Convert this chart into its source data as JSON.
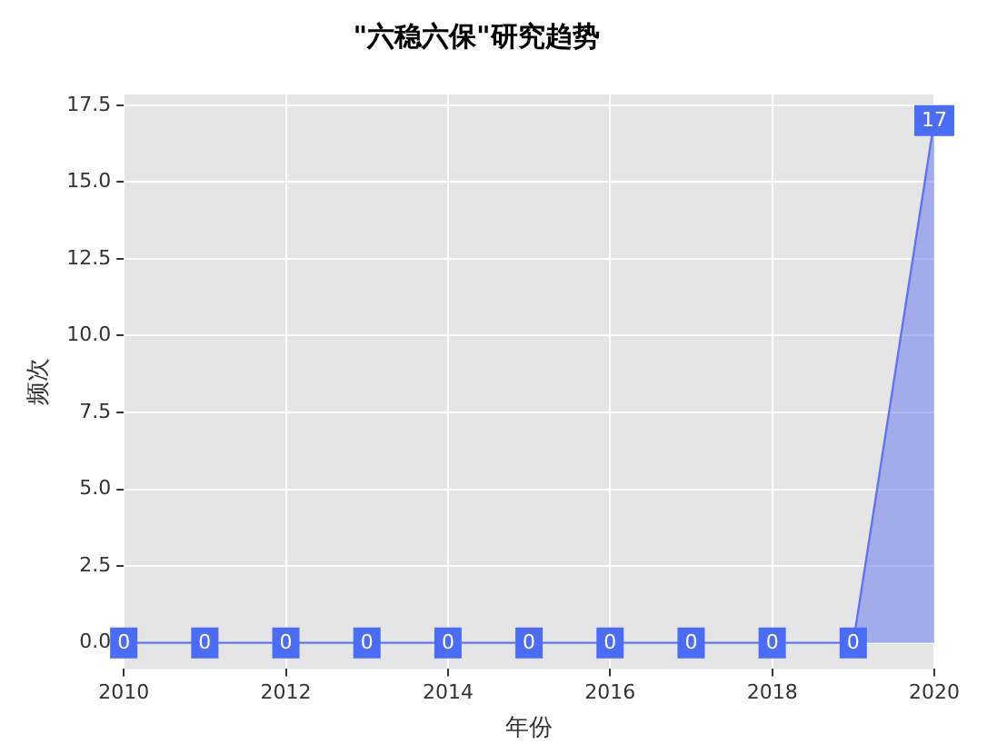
{
  "chart_data": {
    "type": "area",
    "title": "\"六稳六保\"研究趋势",
    "xlabel": "年份",
    "ylabel": "频次",
    "x": [
      2010,
      2011,
      2012,
      2013,
      2014,
      2015,
      2016,
      2017,
      2018,
      2019,
      2020
    ],
    "series": [
      {
        "color": "#6274f2",
        "values": [
          0,
          0,
          0,
          0,
          0,
          0,
          0,
          0,
          0,
          0,
          17
        ]
      }
    ],
    "xlim": [
      2010,
      2020
    ],
    "xticks": [
      2010,
      2012,
      2014,
      2016,
      2018,
      2020
    ],
    "ylim": [
      -0.85,
      17.85
    ],
    "yticks": [
      {
        "value": 0,
        "label": "0.0"
      },
      {
        "value": 2.5,
        "label": "2.5"
      },
      {
        "value": 5,
        "label": "5.0"
      },
      {
        "value": 7.5,
        "label": "7.5"
      },
      {
        "value": 10,
        "label": "10.0"
      },
      {
        "value": 12.5,
        "label": "12.5"
      },
      {
        "value": 15,
        "label": "15.0"
      },
      {
        "value": 17.5,
        "label": "17.5"
      }
    ],
    "grid": true,
    "data_labels": true,
    "line_style": "solid"
  }
}
